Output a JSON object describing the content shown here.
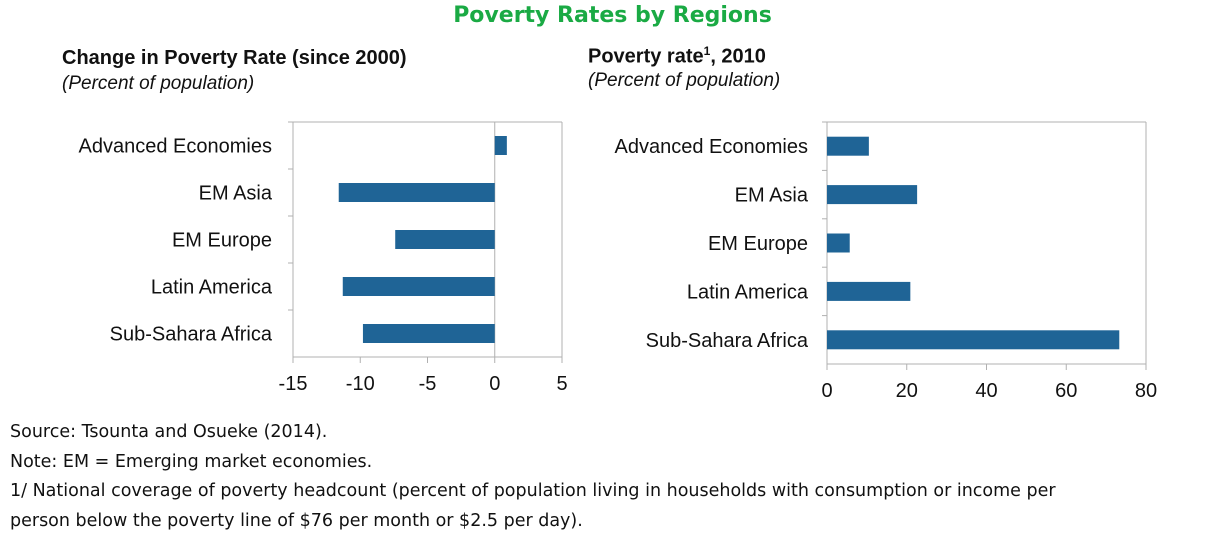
{
  "title": "Poverty Rates by Regions",
  "panels": [
    {
      "title": "Change in Poverty Rate (since 2000)",
      "title_sup": "",
      "title_suffix": "",
      "subtitle": "(Percent of population)"
    },
    {
      "title": "Poverty rate",
      "title_sup": "1",
      "title_suffix": ", 2010",
      "subtitle": "(Percent of population)"
    }
  ],
  "chart_data": [
    {
      "type": "bar",
      "orientation": "horizontal",
      "categories": [
        "Advanced Economies",
        "EM Asia",
        "EM Europe",
        "Latin America",
        "Sub-Sahara Africa"
      ],
      "values": [
        0.9,
        -11.6,
        -7.4,
        -11.3,
        -9.8
      ],
      "title": "Change in Poverty Rate (since 2000)",
      "subtitle": "(Percent of population)",
      "xlim": [
        -15,
        5
      ],
      "xticks": [
        -15,
        -10,
        -5,
        0,
        5
      ],
      "bar_color": "#1f6496",
      "grid": false,
      "legend": "none"
    },
    {
      "type": "bar",
      "orientation": "horizontal",
      "categories": [
        "Advanced Economies",
        "EM Asia",
        "EM Europe",
        "Latin America",
        "Sub-Sahara Africa"
      ],
      "values": [
        10.5,
        22.6,
        5.7,
        20.9,
        73.3
      ],
      "title": "Poverty rate1, 2010",
      "subtitle": "(Percent of population)",
      "xlim": [
        0,
        80
      ],
      "xticks": [
        0,
        20,
        40,
        60,
        80
      ],
      "bar_color": "#1f6496",
      "grid": false,
      "legend": "none"
    }
  ],
  "notes": [
    "Source: Tsounta and Osueke (2014).",
    "Note: EM = Emerging market economies.",
    "1/ National coverage of poverty headcount (percent of population living in households with consumption or income per",
    "person below the poverty line of $76 per month or $2.5 per day)."
  ]
}
